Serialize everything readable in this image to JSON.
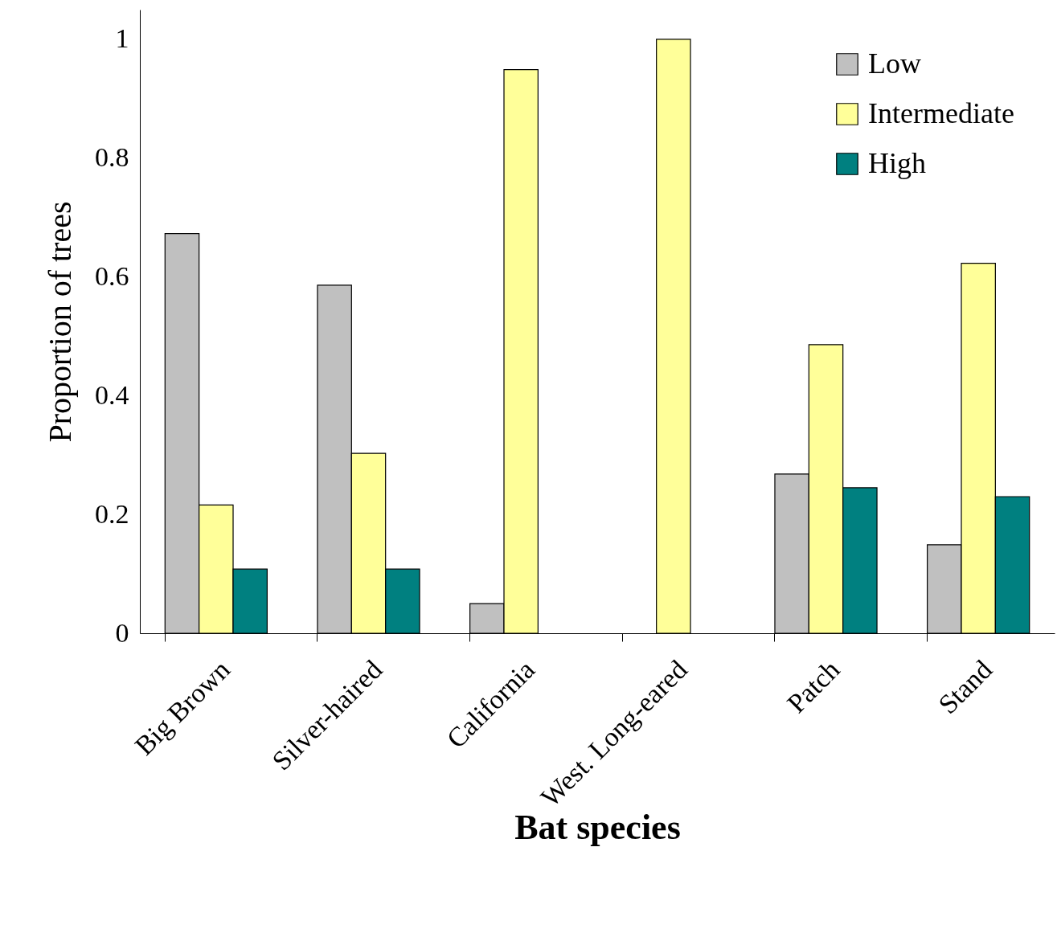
{
  "chart_data": {
    "type": "bar",
    "xlabel": "Bat species",
    "ylabel": "Proportion of trees",
    "categories": [
      "Big Brown",
      "Silver-haired",
      "California",
      "West. Long-eared",
      "Patch",
      "Stand"
    ],
    "series": [
      {
        "name": "Low",
        "color": "#c0c0c0",
        "values": [
          0.673,
          0.586,
          0.05,
          null,
          0.268,
          0.149
        ]
      },
      {
        "name": "Intermediate",
        "color": "#ffff99",
        "values": [
          0.216,
          0.303,
          0.949,
          1.0,
          0.486,
          0.623
        ]
      },
      {
        "name": "High",
        "color": "#008080",
        "values": [
          0.108,
          0.108,
          null,
          null,
          0.245,
          0.23
        ]
      }
    ],
    "ylim": [
      0,
      1.05
    ],
    "yticks": [
      0,
      0.2,
      0.4,
      0.6,
      0.8,
      1
    ],
    "grid": false,
    "legend": "top right"
  }
}
